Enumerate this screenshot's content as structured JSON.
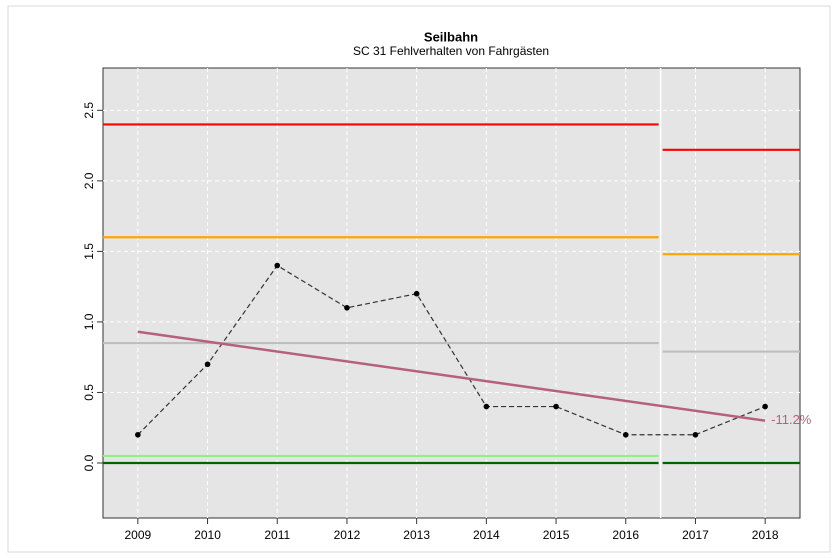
{
  "chart_data": {
    "type": "line",
    "title": "Seilbahn",
    "subtitle": "SC 31 Fehlverhalten von Fahrgästen",
    "x": [
      2009,
      2010,
      2011,
      2012,
      2013,
      2014,
      2015,
      2016,
      2017,
      2018
    ],
    "values": [
      0.2,
      0.7,
      1.4,
      1.1,
      1.2,
      0.4,
      0.4,
      0.2,
      0.2,
      0.4
    ],
    "color": "#333333",
    "xlim": [
      2008.5,
      2018.5
    ],
    "xticks": [
      2009,
      2010,
      2011,
      2012,
      2013,
      2014,
      2015,
      2016,
      2017,
      2018
    ],
    "ylim": [
      -0.39,
      2.8
    ],
    "yticks": [
      {
        "value": 0,
        "label": "0.0"
      },
      {
        "value": 0.5,
        "label": "0.5"
      },
      {
        "value": 1,
        "label": "1.0"
      },
      {
        "value": 1.5,
        "label": "1.5"
      },
      {
        "value": 2,
        "label": "2.0"
      },
      {
        "value": 2.5,
        "label": "2.5"
      }
    ],
    "grid": true,
    "periods": [
      [
        2008.5,
        2016.5
      ],
      [
        2016.5,
        2018.5
      ]
    ],
    "limits": [
      {
        "color": "#ff0000",
        "values": [
          2.4,
          2.22
        ]
      },
      {
        "color": "#ffa500",
        "values": [
          1.6,
          1.48
        ]
      },
      {
        "color": "#bebebe",
        "values": [
          0.85,
          0.79
        ]
      },
      {
        "color": "#90ee90",
        "values": [
          0.05,
          null
        ]
      },
      {
        "color": "#006400",
        "values": [
          0,
          0
        ]
      }
    ],
    "trend": {
      "color": "#b5607e",
      "x": [
        2009,
        2018
      ],
      "values": [
        0.93,
        0.3
      ],
      "label": "-11.2%"
    }
  }
}
